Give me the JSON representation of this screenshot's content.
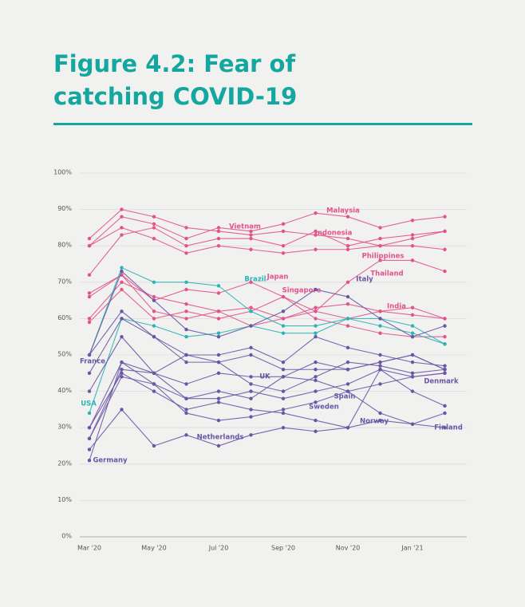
{
  "chart_data": {
    "type": "line",
    "title": "Figure 4.2: Fear of catching COVID-19",
    "categories": [
      "Mar '20",
      null,
      "May '20",
      null,
      "Jul '20",
      null,
      "Sep '20",
      null,
      "Nov '20",
      null,
      "Jan '21",
      null
    ],
    "ylim": [
      0,
      100
    ],
    "yticks": [
      {
        "value": 0,
        "label": "0%"
      },
      {
        "value": 10,
        "label": "10%"
      },
      {
        "value": 20,
        "label": "20%"
      },
      {
        "value": 30,
        "label": "30%"
      },
      {
        "value": 40,
        "label": "40%"
      },
      {
        "value": 50,
        "label": "50%"
      },
      {
        "value": 60,
        "label": "60%"
      },
      {
        "value": 70,
        "label": "70%"
      },
      {
        "value": 80,
        "label": "80%"
      },
      {
        "value": 90,
        "label": "90%"
      },
      {
        "value": 100,
        "label": "100%"
      }
    ],
    "grid": true,
    "series": [
      {
        "name": "Malaysia",
        "color": "#e2538c",
        "values": [
          80,
          88,
          86,
          82,
          85,
          84,
          86,
          89,
          88,
          85,
          87,
          88
        ]
      },
      {
        "name": "Vietnam",
        "color": "#e2538c",
        "values": [
          82,
          90,
          88,
          85,
          84,
          83,
          84,
          83,
          82,
          80,
          82,
          84
        ]
      },
      {
        "name": "Indonesia",
        "color": "#e2538c",
        "values": [
          72,
          83,
          85,
          80,
          82,
          82,
          80,
          84,
          80,
          82,
          83,
          84
        ]
      },
      {
        "name": "Philippines",
        "color": "#e2538c",
        "values": [
          80,
          85,
          82,
          78,
          80,
          79,
          78,
          79,
          79,
          80,
          80,
          79
        ]
      },
      {
        "name": "Japan",
        "color": "#e2538c",
        "values": [
          66,
          72,
          65,
          68,
          67,
          70,
          66,
          62,
          60,
          62,
          61,
          60
        ]
      },
      {
        "name": "Singapore",
        "color": "#e2538c",
        "values": [
          59,
          68,
          60,
          62,
          60,
          62,
          66,
          60,
          58,
          56,
          55,
          55
        ]
      },
      {
        "name": "Thailand",
        "color": "#e2538c",
        "values": [
          67,
          72,
          62,
          60,
          62,
          58,
          60,
          62,
          70,
          76,
          76,
          73
        ]
      },
      {
        "name": "India",
        "color": "#e2538c",
        "values": [
          60,
          70,
          66,
          64,
          62,
          63,
          60,
          63,
          64,
          62,
          63,
          60
        ]
      },
      {
        "name": "Brazil",
        "color": "#2bb3b5",
        "values": [
          50,
          74,
          70,
          70,
          69,
          62,
          58,
          58,
          60,
          60,
          58,
          53
        ]
      },
      {
        "name": "USA",
        "color": "#2bb3b5",
        "values": [
          34,
          60,
          58,
          55,
          56,
          58,
          56,
          56,
          60,
          58,
          56,
          53
        ]
      },
      {
        "name": "France",
        "color": "#6a56a6",
        "values": [
          50,
          62,
          55,
          50,
          50,
          52,
          48,
          55,
          52,
          50,
          48,
          47
        ]
      },
      {
        "name": "Italy",
        "color": "#6a56a6",
        "values": [
          50,
          73,
          65,
          57,
          55,
          58,
          62,
          68,
          66,
          60,
          55,
          58
        ]
      },
      {
        "name": "UK",
        "color": "#6a56a6",
        "values": [
          45,
          60,
          55,
          48,
          48,
          50,
          46,
          46,
          46,
          48,
          50,
          46
        ]
      },
      {
        "name": "Spain",
        "color": "#6a56a6",
        "values": [
          40,
          55,
          45,
          50,
          48,
          42,
          40,
          44,
          48,
          47,
          45,
          46
        ]
      },
      {
        "name": "Sweden",
        "color": "#6a56a6",
        "values": [
          30,
          48,
          45,
          38,
          38,
          40,
          38,
          40,
          42,
          46,
          44,
          45
        ]
      },
      {
        "name": "Norway",
        "color": "#6a56a6",
        "values": [
          30,
          45,
          40,
          35,
          37,
          35,
          34,
          32,
          30,
          46,
          40,
          36
        ]
      },
      {
        "name": "Denmark",
        "color": "#6a56a6",
        "values": [
          27,
          46,
          45,
          42,
          45,
          44,
          44,
          48,
          46,
          48,
          50,
          46
        ]
      },
      {
        "name": "Finland",
        "color": "#6a56a6",
        "values": [
          27,
          44,
          42,
          38,
          40,
          38,
          44,
          43,
          40,
          34,
          31,
          34
        ]
      },
      {
        "name": "Netherlands",
        "color": "#6a56a6",
        "values": [
          24,
          35,
          25,
          28,
          25,
          28,
          30,
          29,
          30,
          32,
          31,
          30
        ]
      },
      {
        "name": "Germany",
        "color": "#6a56a6",
        "values": [
          21,
          48,
          42,
          34,
          32,
          33,
          35,
          37,
          40,
          42,
          44,
          45
        ]
      }
    ]
  }
}
